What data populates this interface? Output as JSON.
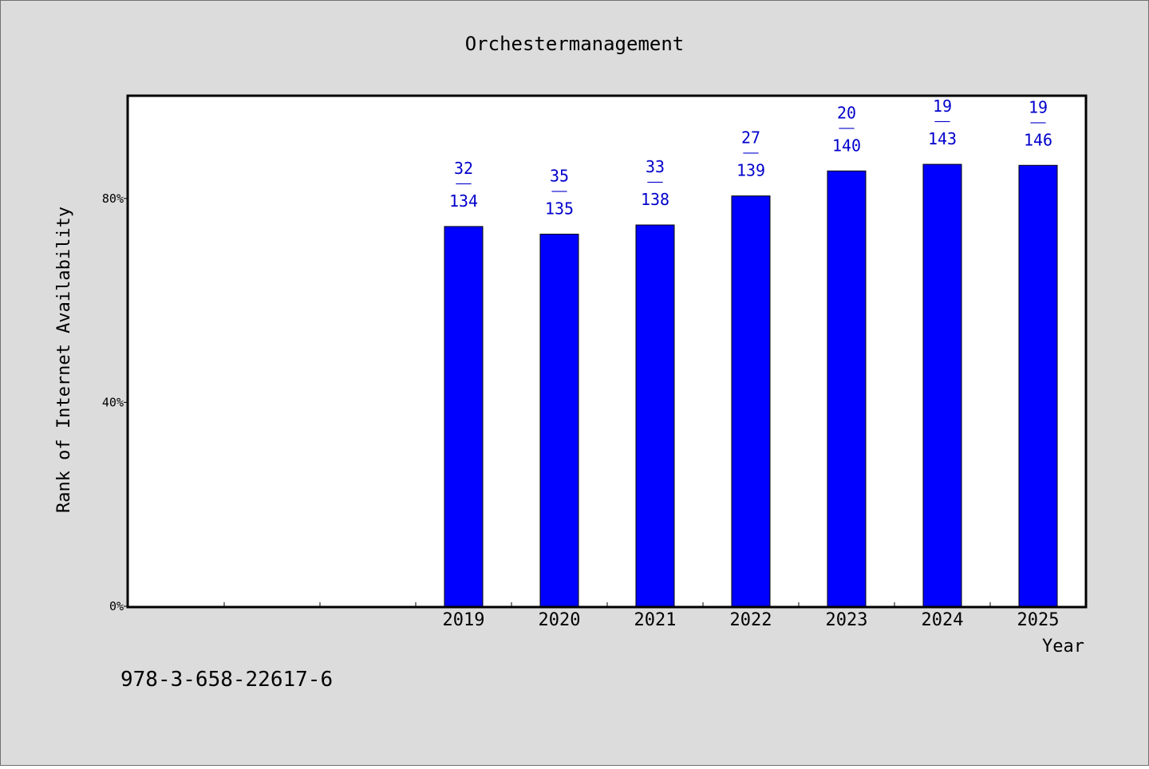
{
  "chart_data": {
    "type": "bar",
    "title": "Orchestermanagement",
    "xlabel": "Year",
    "ylabel": "Rank of Internet Availability",
    "categories": [
      "",
      "",
      "",
      "2019",
      "2020",
      "2021",
      "2022",
      "2023",
      "2024",
      "2025"
    ],
    "values": [
      null,
      null,
      null,
      74.5,
      73.0,
      74.8,
      80.5,
      85.4,
      86.7,
      86.5
    ],
    "bar_labels": [
      null,
      null,
      null,
      {
        "top": "32",
        "sep": "——",
        "bottom": "134"
      },
      {
        "top": "35",
        "sep": "——",
        "bottom": "135"
      },
      {
        "top": "33",
        "sep": "——",
        "bottom": "138"
      },
      {
        "top": "27",
        "sep": "——",
        "bottom": "139"
      },
      {
        "top": "20",
        "sep": "——",
        "bottom": "140"
      },
      {
        "top": "19",
        "sep": "——",
        "bottom": "143"
      },
      {
        "top": "19",
        "sep": "——",
        "bottom": "146"
      }
    ],
    "ylim": [
      0,
      100
    ],
    "yticks": [
      {
        "value": 0,
        "label": "0%"
      },
      {
        "value": 40,
        "label": "40%"
      },
      {
        "value": 80,
        "label": "80%"
      }
    ],
    "grid": false,
    "bar_color": "#0000ff",
    "label_color": "#0000cc"
  },
  "footer": {
    "isbn": "978-3-658-22617-6"
  }
}
